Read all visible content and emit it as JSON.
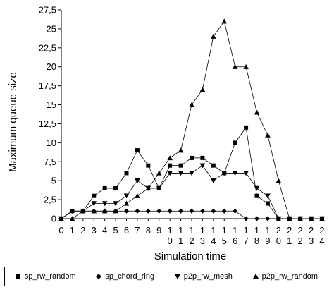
{
  "chart_data": {
    "type": "line",
    "title": "",
    "xlabel": "Simulation time",
    "ylabel": "Maximum queue size",
    "x": [
      "0",
      "1",
      "2",
      "3",
      "4",
      "5",
      "6",
      "7",
      "8",
      "9",
      "10",
      "11",
      "12",
      "13",
      "14",
      "15",
      "16",
      "17",
      "18",
      "19",
      "20",
      "21",
      "22",
      "23",
      "24"
    ],
    "ylim": [
      0,
      27.5
    ],
    "yticks": [
      "0",
      "2,5",
      "5",
      "7,5",
      "10",
      "12,5",
      "15",
      "17,5",
      "20",
      "22,5",
      "25",
      "27,5"
    ],
    "legend_position": "bottom",
    "series": [
      {
        "name": "sp_rw_random",
        "marker": "square",
        "values": [
          0,
          1,
          1,
          3,
          4,
          4,
          6,
          9,
          7,
          4,
          7,
          7,
          8,
          8,
          7,
          6,
          10,
          12,
          3,
          2,
          0,
          0,
          0,
          0,
          0
        ]
      },
      {
        "name": "sp_chord_ring",
        "marker": "diamond",
        "values": [
          0,
          1,
          1,
          1,
          1,
          1,
          1,
          1,
          1,
          1,
          1,
          1,
          1,
          1,
          1,
          1,
          1,
          0,
          0,
          0,
          0,
          0,
          0,
          0,
          0
        ]
      },
      {
        "name": "p2p_rw_mesh",
        "marker": "triangle-down",
        "values": [
          0,
          1,
          1,
          2,
          2,
          2,
          3,
          5,
          4,
          4,
          6,
          6,
          6,
          7,
          5,
          6,
          6,
          6,
          4,
          3,
          0,
          0,
          0,
          0,
          0
        ]
      },
      {
        "name": "p2p_rw_random",
        "marker": "triangle-up",
        "values": [
          0,
          0,
          1,
          1,
          1,
          1,
          2,
          3,
          4,
          6,
          8,
          9,
          15,
          17,
          24,
          26,
          20,
          20,
          14,
          11,
          5,
          0,
          0,
          0,
          0
        ]
      }
    ]
  }
}
